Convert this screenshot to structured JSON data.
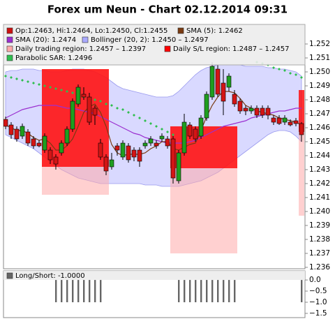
{
  "chart_data": {
    "type": "candlestick",
    "title": "Forex um Neun - Chart 02.12.2014 09:31",
    "ylim": [
      1.2359,
      1.2534
    ],
    "yticks": [
      1.236,
      1.237,
      1.238,
      1.239,
      {
        "value": 1.24,
        "label": "1.240"
      },
      1.241,
      1.242,
      1.243,
      1.244,
      1.245,
      1.246,
      1.247,
      1.248,
      1.249,
      {
        "value": 1.25,
        "label": "1.250"
      },
      1.251,
      1.252
    ],
    "ohlc": {
      "name": "Op:1.2463, Hi:1.2464, Lo:1.2450, Cl:1.2455",
      "color": "#cc1111",
      "up_color": "#1f9e1f",
      "down_color": "#d41515",
      "open": [
        1.2466,
        1.2462,
        1.2459,
        1.2454,
        1.2457,
        1.2452,
        1.2449,
        1.2444,
        1.2444,
        1.2439,
        1.2442,
        1.2449,
        1.2459,
        1.2477,
        1.2484,
        1.2482,
        1.2474,
        1.2449,
        1.2439,
        1.2432,
        1.2447,
        1.2439,
        1.2447,
        1.2444,
        1.2444,
        1.2447,
        1.2449,
        1.2449,
        1.2452,
        1.2452,
        1.2452,
        1.2422,
        1.2442,
        1.2462,
        1.2459,
        1.2454,
        1.2467,
        1.2482,
        1.2502,
        1.2492,
        1.2489,
        1.2484,
        1.2479,
        1.2474,
        1.2472,
        1.2474,
        1.2474,
        1.2474,
        1.2467,
        1.2467,
        1.2464,
        1.2464,
        1.2465,
        1.2463
      ],
      "high": [
        1.2468,
        1.2464,
        1.2461,
        1.2463,
        1.2459,
        1.2454,
        1.2451,
        1.2456,
        1.2446,
        1.2441,
        1.2451,
        1.2461,
        1.2481,
        1.2491,
        1.2489,
        1.2485,
        1.2476,
        1.2452,
        1.2441,
        1.2442,
        1.2449,
        1.2451,
        1.2449,
        1.2446,
        1.2446,
        1.2451,
        1.2454,
        1.2451,
        1.2456,
        1.2454,
        1.2454,
        1.2444,
        1.247,
        1.2464,
        1.2461,
        1.2469,
        1.2486,
        1.2507,
        1.2505,
        1.2502,
        1.2499,
        1.2487,
        1.2481,
        1.2476,
        1.2476,
        1.2476,
        1.2476,
        1.2476,
        1.2469,
        1.2469,
        1.2469,
        1.2466,
        1.2467,
        1.2464
      ],
      "low": [
        1.2459,
        1.2452,
        1.245,
        1.2452,
        1.2447,
        1.2445,
        1.2446,
        1.2442,
        1.2434,
        1.243,
        1.244,
        1.2447,
        1.2457,
        1.2475,
        1.248,
        1.2462,
        1.2462,
        1.2437,
        1.2426,
        1.243,
        1.244,
        1.2437,
        1.2435,
        1.2436,
        1.2432,
        1.2445,
        1.2447,
        1.2445,
        1.245,
        1.2445,
        1.242,
        1.242,
        1.244,
        1.2452,
        1.245,
        1.2452,
        1.2465,
        1.248,
        1.2482,
        1.2469,
        1.2486,
        1.2475,
        1.247,
        1.2469,
        1.247,
        1.2467,
        1.2467,
        1.2466,
        1.2462,
        1.2462,
        1.2462,
        1.2461,
        1.2461,
        1.245
      ],
      "close": [
        1.2461,
        1.2455,
        1.2452,
        1.2461,
        1.2449,
        1.2447,
        1.2447,
        1.2454,
        1.2437,
        1.2434,
        1.2449,
        1.2459,
        1.2479,
        1.2489,
        1.2482,
        1.2464,
        1.2469,
        1.2439,
        1.2429,
        1.2437,
        1.2444,
        1.2449,
        1.2437,
        1.2439,
        1.2436,
        1.2449,
        1.2452,
        1.2447,
        1.2454,
        1.2447,
        1.2424,
        1.2442,
        1.2464,
        1.2454,
        1.2452,
        1.2467,
        1.2484,
        1.2504,
        1.2484,
        1.2479,
        1.2497,
        1.2477,
        1.2472,
        1.2472,
        1.2474,
        1.2469,
        1.2469,
        1.2469,
        1.2464,
        1.2463,
        1.2467,
        1.2462,
        1.2463,
        1.2455
      ]
    },
    "sma5": {
      "name": "SMA (5): 1.2462",
      "color": "#7a3b12",
      "values": [
        1.2462,
        1.246,
        1.2458,
        1.2458,
        1.2456,
        1.2453,
        1.2451,
        1.2452,
        1.2449,
        1.2444,
        1.2444,
        1.2447,
        1.2452,
        1.2461,
        1.2471,
        1.2475,
        1.2477,
        1.2471,
        1.2461,
        1.2448,
        1.2442,
        1.244,
        1.2441,
        1.2441,
        1.2441,
        1.2442,
        1.2445,
        1.2447,
        1.245,
        1.245,
        1.2445,
        1.2444,
        1.2446,
        1.2448,
        1.2449,
        1.2458,
        1.2468,
        1.2476,
        1.2482,
        1.2486,
        1.2486,
        1.2485,
        1.2481,
        1.2476,
        1.2474,
        1.2472,
        1.2471,
        1.247,
        1.2469,
        1.2467,
        1.2466,
        1.2465,
        1.2464,
        1.2462
      ]
    },
    "sma20": {
      "name": "SMA (20): 1.2474",
      "color": "#9b30d0",
      "values": [
        1.2467,
        1.2469,
        1.2471,
        1.2473,
        1.2474,
        1.2475,
        1.2476,
        1.2476,
        1.2476,
        1.2476,
        1.2475,
        1.2474,
        1.2474,
        1.2473,
        1.2472,
        1.2471,
        1.247,
        1.2468,
        1.2466,
        1.2464,
        1.2462,
        1.246,
        1.2458,
        1.2456,
        1.2455,
        1.2453,
        1.2452,
        1.2451,
        1.245,
        1.2449,
        1.2449,
        1.2449,
        1.2449,
        1.245,
        1.2451,
        1.2453,
        1.2455,
        1.2457,
        1.2459,
        1.2461,
        1.2462,
        1.2463,
        1.2464,
        1.2465,
        1.2467,
        1.2468,
        1.2469,
        1.247,
        1.2471,
        1.2472,
        1.2472,
        1.2473,
        1.2474,
        1.2474
      ]
    },
    "bollinger": {
      "name": "Bollinger (20, 2): 1.2450 – 1.2497",
      "color": "#aaaaff",
      "upper": [
        1.25,
        1.2501,
        1.2501,
        1.2502,
        1.2502,
        1.2502,
        1.2501,
        1.2501,
        1.25,
        1.25,
        1.25,
        1.2501,
        1.2502,
        1.2502,
        1.2502,
        1.2501,
        1.25,
        1.2498,
        1.2496,
        1.2493,
        1.249,
        1.2488,
        1.2487,
        1.2486,
        1.2485,
        1.2484,
        1.2483,
        1.2482,
        1.2482,
        1.2482,
        1.2483,
        1.2486,
        1.249,
        1.2494,
        1.2498,
        1.2501,
        1.2503,
        1.2504,
        1.2505,
        1.2505,
        1.2505,
        1.2505,
        1.2505,
        1.2504,
        1.2504,
        1.2504,
        1.2504,
        1.2503,
        1.2503,
        1.2502,
        1.2502,
        1.2501,
        1.25,
        1.2497
      ],
      "lower": [
        1.2455,
        1.2453,
        1.2451,
        1.2449,
        1.2447,
        1.2445,
        1.2442,
        1.2439,
        1.2436,
        1.2433,
        1.243,
        1.2428,
        1.2426,
        1.2424,
        1.2423,
        1.2422,
        1.2421,
        1.242,
        1.242,
        1.242,
        1.242,
        1.242,
        1.242,
        1.242,
        1.242,
        1.2419,
        1.2419,
        1.2419,
        1.2418,
        1.2418,
        1.2418,
        1.2418,
        1.2419,
        1.242,
        1.2421,
        1.2422,
        1.2424,
        1.2426,
        1.2428,
        1.2431,
        1.2434,
        1.2437,
        1.244,
        1.2443,
        1.2446,
        1.2449,
        1.2452,
        1.2455,
        1.2457,
        1.2458,
        1.2458,
        1.2457,
        1.2454,
        1.245
      ]
    },
    "trading_region": {
      "name": "Daily trading region: 1.2457 – 1.2397",
      "color": "#ffaaaa",
      "regions": [
        {
          "from": 7,
          "to": 18,
          "high": 1.2502,
          "low": 1.2412
        },
        {
          "from": 30,
          "to": 41,
          "high": 1.2461,
          "low": 1.237
        },
        {
          "from": 53,
          "to": 53,
          "high": 1.2457,
          "low": 1.2397
        }
      ]
    },
    "sl_region": {
      "name": "Daily S/L region: 1.2487 – 1.2457",
      "color": "#ff0000",
      "regions": [
        {
          "from": 7,
          "to": 18,
          "high": 1.2502,
          "low": 1.2432
        },
        {
          "from": 30,
          "to": 41,
          "high": 1.2461,
          "low": 1.2431
        },
        {
          "from": 53,
          "to": 53,
          "high": 1.2487,
          "low": 1.2457
        }
      ]
    },
    "sar": {
      "name": "Parabolic SAR: 1.2496",
      "color": "#2fbf4f",
      "values": [
        1.2497,
        1.2496,
        1.2495,
        1.2494,
        1.2493,
        1.2492,
        1.2491,
        1.249,
        1.2489,
        1.2488,
        1.2487,
        1.2486,
        1.2485,
        1.2484,
        1.2482,
        1.2481,
        1.248,
        1.2479,
        1.2477,
        1.2476,
        1.2474,
        1.2473,
        1.2471,
        1.2469,
        1.2467,
        1.2465,
        1.2463,
        1.2461,
        1.2459,
        1.2457,
        1.2455,
        null,
        null,
        null,
        null,
        null,
        null,
        null,
        null,
        null,
        null,
        null,
        null,
        null,
        null,
        1.2507,
        1.2506,
        1.2505,
        1.2503,
        1.2502,
        1.2501,
        1.2499,
        1.2498,
        1.2496
      ]
    },
    "lower_panel": {
      "type": "bar",
      "name": "Long/Short: -1.0000",
      "color": "#666666",
      "ylim": [
        -1.69,
        0.41
      ],
      "yticks": [
        {
          "value": 0,
          "label": "0.0"
        },
        {
          "value": -0.5,
          "label": "−0.5"
        },
        {
          "value": -1,
          "label": "−1.0"
        },
        {
          "value": -1.5,
          "label": "−1.5"
        }
      ],
      "values": [
        0,
        0,
        0,
        0,
        0,
        0,
        0,
        0,
        0,
        -1,
        -1,
        -1,
        -1,
        -1,
        -1,
        -1,
        -1,
        -1,
        0,
        0,
        0,
        0,
        0,
        0,
        0,
        0,
        0,
        0,
        0,
        0,
        0,
        -1,
        -1,
        -1,
        -1,
        -1,
        -1,
        -1,
        -1,
        -1,
        -1,
        -1,
        0,
        0,
        0,
        0,
        0,
        0,
        0,
        0,
        0,
        0,
        0,
        -1
      ]
    }
  }
}
